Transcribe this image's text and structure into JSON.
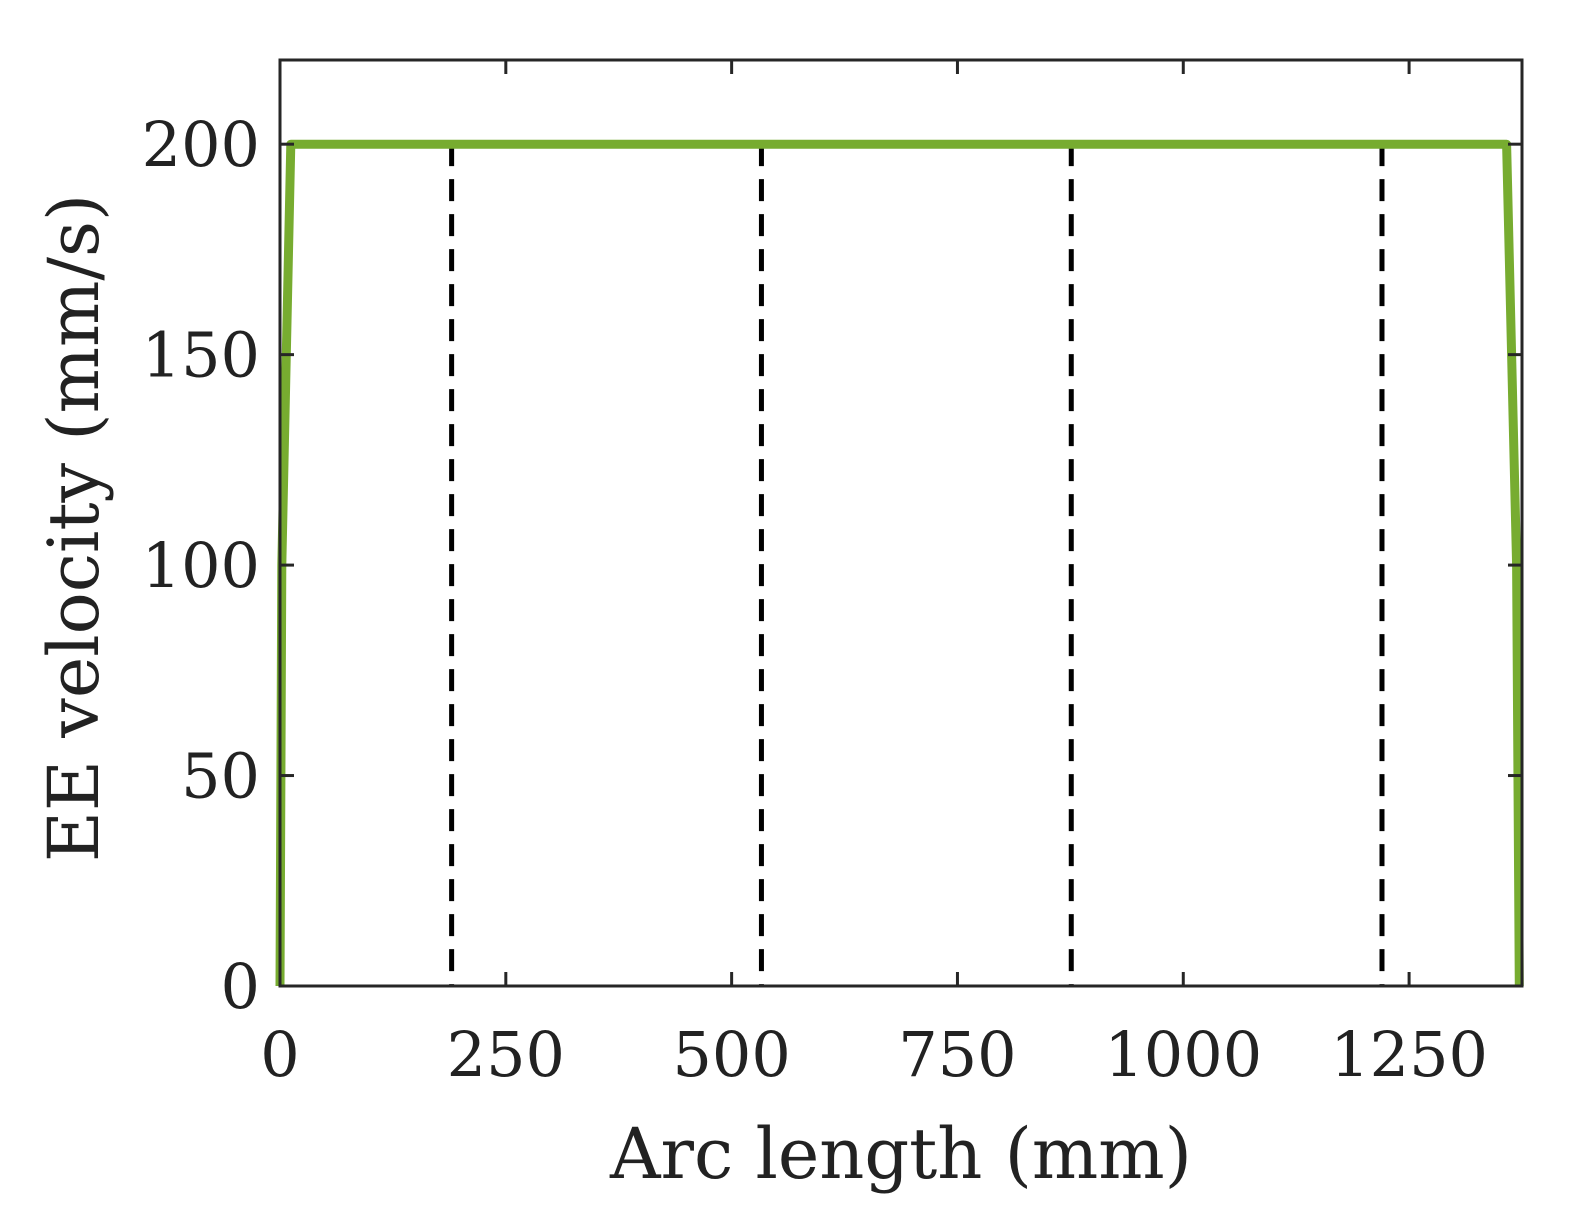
{
  "chart_data": {
    "type": "line",
    "xlabel": "Arc length (mm)",
    "ylabel": "EE velocity (mm/s)",
    "xlim": [
      0,
      1375
    ],
    "ylim": [
      0,
      220
    ],
    "xticks": [
      0,
      250,
      500,
      750,
      1000,
      1250
    ],
    "yticks": [
      0,
      50,
      100,
      150,
      200
    ],
    "grid": false,
    "box": true,
    "series": [
      {
        "color": "#77AC30",
        "x": [
          0,
          2,
          12,
          1358,
          1369,
          1372
        ],
        "y": [
          0,
          100,
          200,
          200,
          100,
          0
        ]
      }
    ],
    "vlines": {
      "style": "dashed",
      "color": "#000000",
      "x": [
        190,
        533,
        876,
        1220
      ]
    }
  }
}
